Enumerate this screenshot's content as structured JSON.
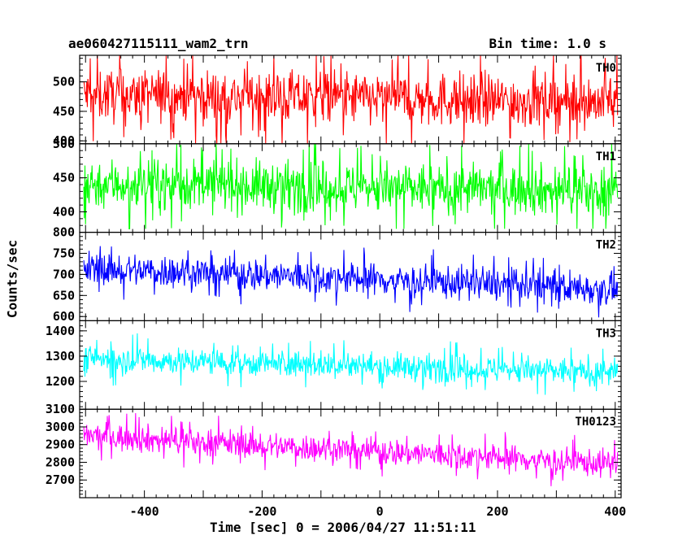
{
  "header": {
    "title": "ae060427115111_wam2_trn",
    "bin_time": "Bin time: 1.0 s"
  },
  "chart_data": {
    "type": "line",
    "xlabel": "Time [sec] 0 = 2006/04/27 11:51:11",
    "ylabel": "Counts/sec",
    "xlim": [
      -510,
      410
    ],
    "x_ticks": [
      "-400",
      "-200",
      "0",
      "200",
      "400"
    ],
    "panels": [
      {
        "name": "TH0",
        "color": "#ff0000",
        "ylim": [
          395,
          545
        ],
        "y_ticks": [
          "400",
          "450",
          "500"
        ],
        "start_mean": 478,
        "end_mean": 466,
        "noise": 32,
        "spike_max": 545,
        "spike_min": 395
      },
      {
        "name": "TH1",
        "color": "#00ff00",
        "ylim": [
          370,
          500
        ],
        "y_ticks": [
          "400",
          "450",
          "500"
        ],
        "start_mean": 442,
        "end_mean": 430,
        "noise": 26,
        "spike_max": 500,
        "spike_min": 375
      },
      {
        "name": "TH2",
        "color": "#0000ff",
        "ylim": [
          590,
          800
        ],
        "y_ticks": [
          "600",
          "650",
          "700",
          "750",
          "800"
        ],
        "start_mean": 715,
        "end_mean": 665,
        "noise": 28,
        "spike_max": 790,
        "spike_min": 595
      },
      {
        "name": "TH3",
        "color": "#00ffff",
        "ylim": [
          1090,
          1440
        ],
        "y_ticks": [
          "1200",
          "1300",
          "1400"
        ],
        "start_mean": 1290,
        "end_mean": 1235,
        "noise": 38,
        "spike_max": 1430,
        "spike_min": 1100
      },
      {
        "name": "TH0123",
        "color": "#ff00ff",
        "ylim": [
          2600,
          3100
        ],
        "y_ticks": [
          "2700",
          "2800",
          "2900",
          "3000",
          "3100"
        ],
        "start_mean": 2950,
        "end_mean": 2790,
        "noise": 55,
        "spike_max": 3090,
        "spike_min": 2620
      }
    ]
  }
}
